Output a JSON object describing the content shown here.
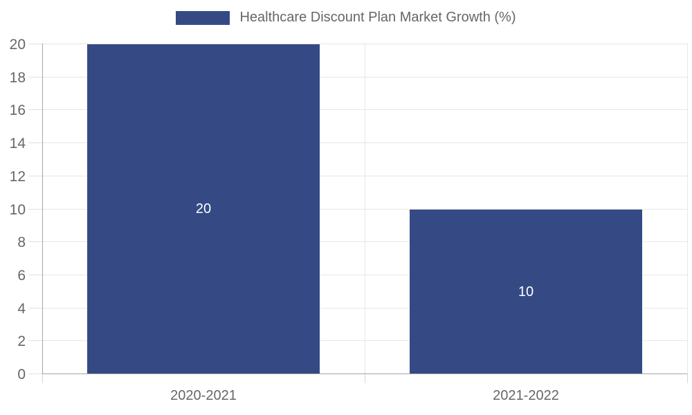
{
  "chart_data": {
    "type": "bar",
    "title": "Healthcare Discount Plan Market Growth (%)",
    "categories": [
      "2020-2021",
      "2021-2022"
    ],
    "values": [
      20,
      10
    ],
    "data_labels": [
      "20",
      "10"
    ],
    "xlabel": "",
    "ylabel": "",
    "ylim": [
      0,
      20
    ],
    "ytick_step": 2,
    "ytick_labels": [
      "0",
      "2",
      "4",
      "6",
      "8",
      "10",
      "12",
      "14",
      "16",
      "18",
      "20"
    ],
    "grid": "on",
    "legend_position": "top",
    "colors": {
      "bar_fill": "#354a85",
      "bar_value_label": "#ffffff",
      "axis_line": "#a5a5a5",
      "gridline": "#e6e6e6",
      "tick_label_text": "#666666",
      "legend_text": "#666666"
    }
  }
}
